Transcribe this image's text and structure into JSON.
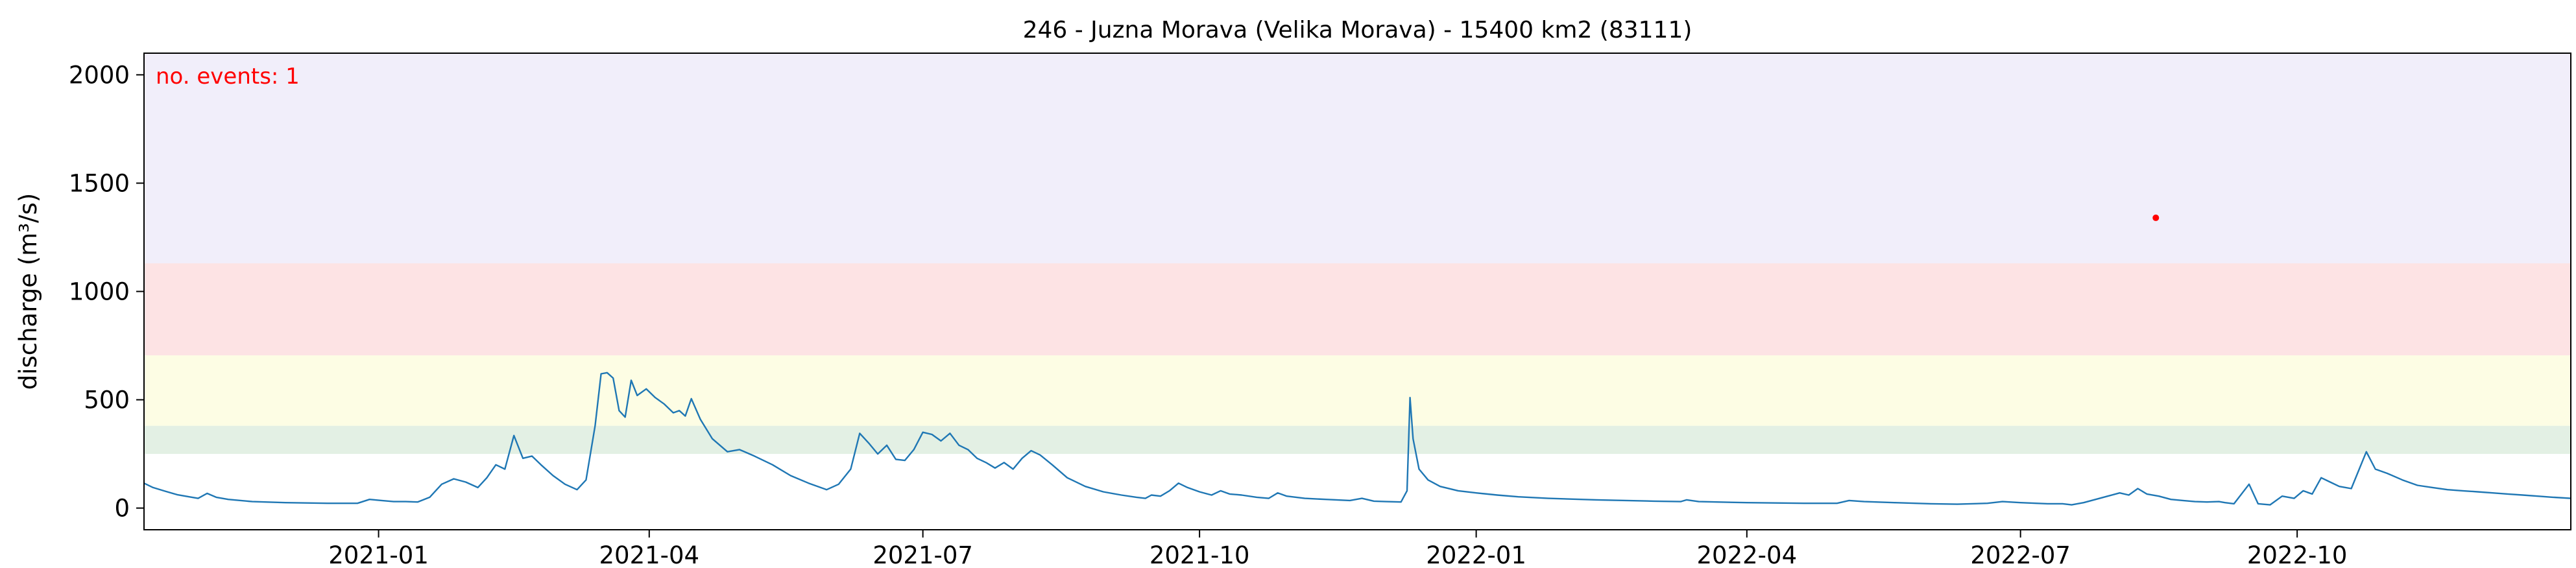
{
  "chart_data": {
    "type": "line",
    "title": "246 - Juzna Morava (Velika Morava) - 15400 km2 (83111)",
    "xlabel": "",
    "ylabel": "discharge (m³/s)",
    "xlim": [
      "2020-10-15",
      "2022-12-31"
    ],
    "ylim": [
      -100,
      2100
    ],
    "grid": false,
    "xticks": [
      "2021-01",
      "2021-04",
      "2021-07",
      "2021-10",
      "2022-01",
      "2022-04",
      "2022-07",
      "2022-10"
    ],
    "yticks": [
      0,
      500,
      1000,
      1500,
      2000
    ],
    "bands": [
      {
        "from": 250,
        "to": 380,
        "color": "#e3f0e4"
      },
      {
        "from": 380,
        "to": 705,
        "color": "#fdfde4"
      },
      {
        "from": 705,
        "to": 1130,
        "color": "#fde3e4"
      },
      {
        "from": 1130,
        "to": 2100,
        "color": "#f1eefa"
      }
    ],
    "annotation": {
      "text": "no. events: 1",
      "position": "top-left",
      "color": "#ff0000"
    },
    "series": [
      {
        "color": "#1f77b4",
        "points": [
          [
            "2020-10-15",
            115
          ],
          [
            "2020-10-18",
            95
          ],
          [
            "2020-10-22",
            78
          ],
          [
            "2020-10-26",
            62
          ],
          [
            "2020-10-30",
            52
          ],
          [
            "2020-11-02",
            45
          ],
          [
            "2020-11-05",
            68
          ],
          [
            "2020-11-08",
            50
          ],
          [
            "2020-11-12",
            40
          ],
          [
            "2020-11-20",
            30
          ],
          [
            "2020-12-01",
            25
          ],
          [
            "2020-12-15",
            22
          ],
          [
            "2020-12-25",
            22
          ],
          [
            "2020-12-29",
            40
          ],
          [
            "2021-01-02",
            35
          ],
          [
            "2021-01-06",
            30
          ],
          [
            "2021-01-10",
            30
          ],
          [
            "2021-01-14",
            28
          ],
          [
            "2021-01-18",
            50
          ],
          [
            "2021-01-22",
            110
          ],
          [
            "2021-01-26",
            135
          ],
          [
            "2021-01-30",
            120
          ],
          [
            "2021-02-03",
            95
          ],
          [
            "2021-02-06",
            140
          ],
          [
            "2021-02-09",
            200
          ],
          [
            "2021-02-12",
            180
          ],
          [
            "2021-02-15",
            335
          ],
          [
            "2021-02-18",
            230
          ],
          [
            "2021-02-21",
            240
          ],
          [
            "2021-02-24",
            200
          ],
          [
            "2021-02-28",
            150
          ],
          [
            "2021-03-04",
            110
          ],
          [
            "2021-03-08",
            85
          ],
          [
            "2021-03-11",
            130
          ],
          [
            "2021-03-14",
            380
          ],
          [
            "2021-03-16",
            620
          ],
          [
            "2021-03-18",
            625
          ],
          [
            "2021-03-20",
            600
          ],
          [
            "2021-03-22",
            450
          ],
          [
            "2021-03-24",
            420
          ],
          [
            "2021-03-26",
            590
          ],
          [
            "2021-03-28",
            520
          ],
          [
            "2021-03-31",
            550
          ],
          [
            "2021-04-03",
            510
          ],
          [
            "2021-04-06",
            480
          ],
          [
            "2021-04-09",
            440
          ],
          [
            "2021-04-11",
            450
          ],
          [
            "2021-04-13",
            425
          ],
          [
            "2021-04-15",
            505
          ],
          [
            "2021-04-18",
            410
          ],
          [
            "2021-04-22",
            320
          ],
          [
            "2021-04-27",
            260
          ],
          [
            "2021-05-01",
            270
          ],
          [
            "2021-05-06",
            240
          ],
          [
            "2021-05-12",
            200
          ],
          [
            "2021-05-18",
            150
          ],
          [
            "2021-05-24",
            115
          ],
          [
            "2021-05-30",
            85
          ],
          [
            "2021-06-03",
            110
          ],
          [
            "2021-06-07",
            180
          ],
          [
            "2021-06-10",
            345
          ],
          [
            "2021-06-13",
            300
          ],
          [
            "2021-06-16",
            250
          ],
          [
            "2021-06-19",
            290
          ],
          [
            "2021-06-22",
            225
          ],
          [
            "2021-06-25",
            220
          ],
          [
            "2021-06-28",
            270
          ],
          [
            "2021-07-01",
            350
          ],
          [
            "2021-07-04",
            340
          ],
          [
            "2021-07-07",
            310
          ],
          [
            "2021-07-10",
            345
          ],
          [
            "2021-07-13",
            290
          ],
          [
            "2021-07-16",
            270
          ],
          [
            "2021-07-19",
            230
          ],
          [
            "2021-07-22",
            210
          ],
          [
            "2021-07-25",
            185
          ],
          [
            "2021-07-28",
            210
          ],
          [
            "2021-07-31",
            180
          ],
          [
            "2021-08-03",
            230
          ],
          [
            "2021-08-06",
            265
          ],
          [
            "2021-08-09",
            245
          ],
          [
            "2021-08-13",
            200
          ],
          [
            "2021-08-18",
            140
          ],
          [
            "2021-08-24",
            100
          ],
          [
            "2021-08-30",
            75
          ],
          [
            "2021-09-05",
            60
          ],
          [
            "2021-09-10",
            50
          ],
          [
            "2021-09-13",
            45
          ],
          [
            "2021-09-15",
            60
          ],
          [
            "2021-09-18",
            55
          ],
          [
            "2021-09-21",
            80
          ],
          [
            "2021-09-24",
            115
          ],
          [
            "2021-09-27",
            95
          ],
          [
            "2021-10-01",
            75
          ],
          [
            "2021-10-05",
            60
          ],
          [
            "2021-10-08",
            80
          ],
          [
            "2021-10-11",
            65
          ],
          [
            "2021-10-15",
            60
          ],
          [
            "2021-10-20",
            50
          ],
          [
            "2021-10-24",
            45
          ],
          [
            "2021-10-27",
            70
          ],
          [
            "2021-10-30",
            55
          ],
          [
            "2021-11-05",
            45
          ],
          [
            "2021-11-12",
            40
          ],
          [
            "2021-11-20",
            35
          ],
          [
            "2021-11-24",
            45
          ],
          [
            "2021-11-28",
            32
          ],
          [
            "2021-12-02",
            30
          ],
          [
            "2021-12-07",
            28
          ],
          [
            "2021-12-09",
            80
          ],
          [
            "2021-12-10",
            510
          ],
          [
            "2021-12-11",
            320
          ],
          [
            "2021-12-13",
            180
          ],
          [
            "2021-12-16",
            130
          ],
          [
            "2021-12-20",
            100
          ],
          [
            "2021-12-26",
            80
          ],
          [
            "2022-01-01",
            70
          ],
          [
            "2022-01-08",
            60
          ],
          [
            "2022-01-15",
            52
          ],
          [
            "2022-01-25",
            45
          ],
          [
            "2022-02-10",
            38
          ],
          [
            "2022-03-01",
            32
          ],
          [
            "2022-03-10",
            30
          ],
          [
            "2022-03-12",
            38
          ],
          [
            "2022-03-16",
            30
          ],
          [
            "2022-04-01",
            25
          ],
          [
            "2022-04-20",
            22
          ],
          [
            "2022-05-01",
            22
          ],
          [
            "2022-05-05",
            35
          ],
          [
            "2022-05-10",
            30
          ],
          [
            "2022-05-20",
            25
          ],
          [
            "2022-06-01",
            20
          ],
          [
            "2022-06-10",
            18
          ],
          [
            "2022-06-20",
            22
          ],
          [
            "2022-06-25",
            30
          ],
          [
            "2022-07-01",
            25
          ],
          [
            "2022-07-10",
            20
          ],
          [
            "2022-07-15",
            20
          ],
          [
            "2022-07-18",
            15
          ],
          [
            "2022-07-22",
            25
          ],
          [
            "2022-07-26",
            40
          ],
          [
            "2022-07-30",
            55
          ],
          [
            "2022-08-03",
            70
          ],
          [
            "2022-08-06",
            60
          ],
          [
            "2022-08-09",
            90
          ],
          [
            "2022-08-12",
            65
          ],
          [
            "2022-08-16",
            55
          ],
          [
            "2022-08-20",
            40
          ],
          [
            "2022-08-24",
            35
          ],
          [
            "2022-08-28",
            30
          ],
          [
            "2022-09-01",
            28
          ],
          [
            "2022-09-05",
            30
          ],
          [
            "2022-09-07",
            25
          ],
          [
            "2022-09-10",
            20
          ],
          [
            "2022-09-15",
            110
          ],
          [
            "2022-09-18",
            20
          ],
          [
            "2022-09-22",
            15
          ],
          [
            "2022-09-26",
            55
          ],
          [
            "2022-09-30",
            45
          ],
          [
            "2022-10-03",
            80
          ],
          [
            "2022-10-06",
            65
          ],
          [
            "2022-10-09",
            140
          ],
          [
            "2022-10-12",
            120
          ],
          [
            "2022-10-15",
            100
          ],
          [
            "2022-10-19",
            90
          ],
          [
            "2022-10-24",
            260
          ],
          [
            "2022-10-27",
            180
          ],
          [
            "2022-10-31",
            160
          ],
          [
            "2022-11-05",
            130
          ],
          [
            "2022-11-10",
            105
          ],
          [
            "2022-11-15",
            95
          ],
          [
            "2022-11-20",
            85
          ],
          [
            "2022-11-25",
            80
          ],
          [
            "2022-11-30",
            75
          ],
          [
            "2022-12-05",
            70
          ],
          [
            "2022-12-10",
            65
          ],
          [
            "2022-12-15",
            60
          ],
          [
            "2022-12-20",
            55
          ],
          [
            "2022-12-25",
            50
          ],
          [
            "2022-12-31",
            45
          ]
        ]
      }
    ],
    "event_points": [
      {
        "x": "2022-08-15",
        "y": 1340,
        "color": "#ff0000"
      }
    ]
  }
}
